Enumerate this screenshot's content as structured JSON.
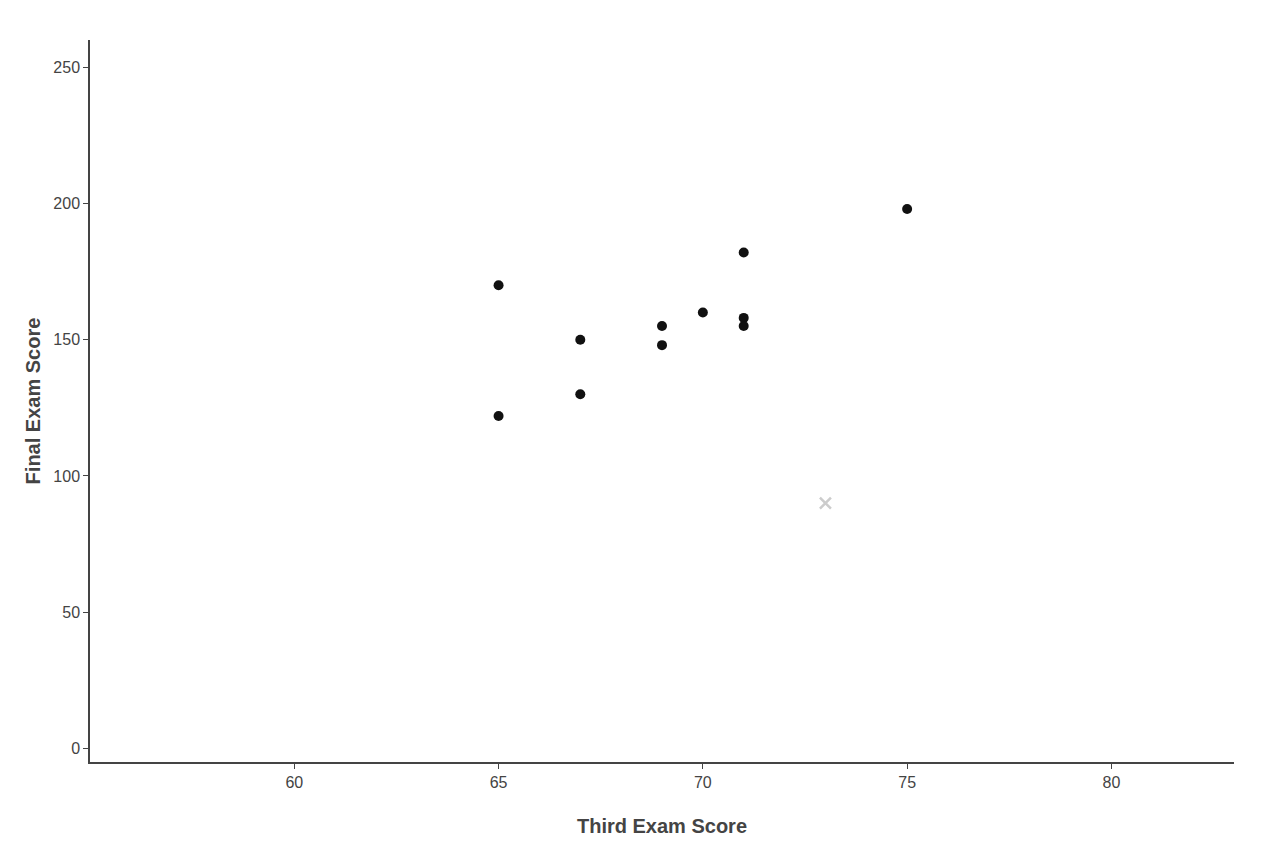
{
  "chart_data": {
    "type": "scatter",
    "xlabel": "Third Exam Score",
    "ylabel": "Final Exam Score",
    "series": [
      {
        "color": "#111111",
        "marker": "circle",
        "x": [
          65,
          65,
          67,
          67,
          69,
          69,
          70,
          71,
          71,
          71,
          75
        ],
        "values": [
          170,
          122,
          150,
          130,
          155,
          148,
          160,
          182,
          158,
          155,
          198
        ]
      },
      {
        "color": "#cccccc",
        "marker": "x",
        "x": [
          73
        ],
        "values": [
          90
        ]
      }
    ],
    "xlim": [
      55,
      83
    ],
    "ylim": [
      -5,
      260
    ],
    "xticks": [
      60,
      65,
      70,
      75,
      80
    ],
    "yticks": [
      0,
      50,
      100,
      150,
      200,
      250
    ],
    "grid": false
  }
}
